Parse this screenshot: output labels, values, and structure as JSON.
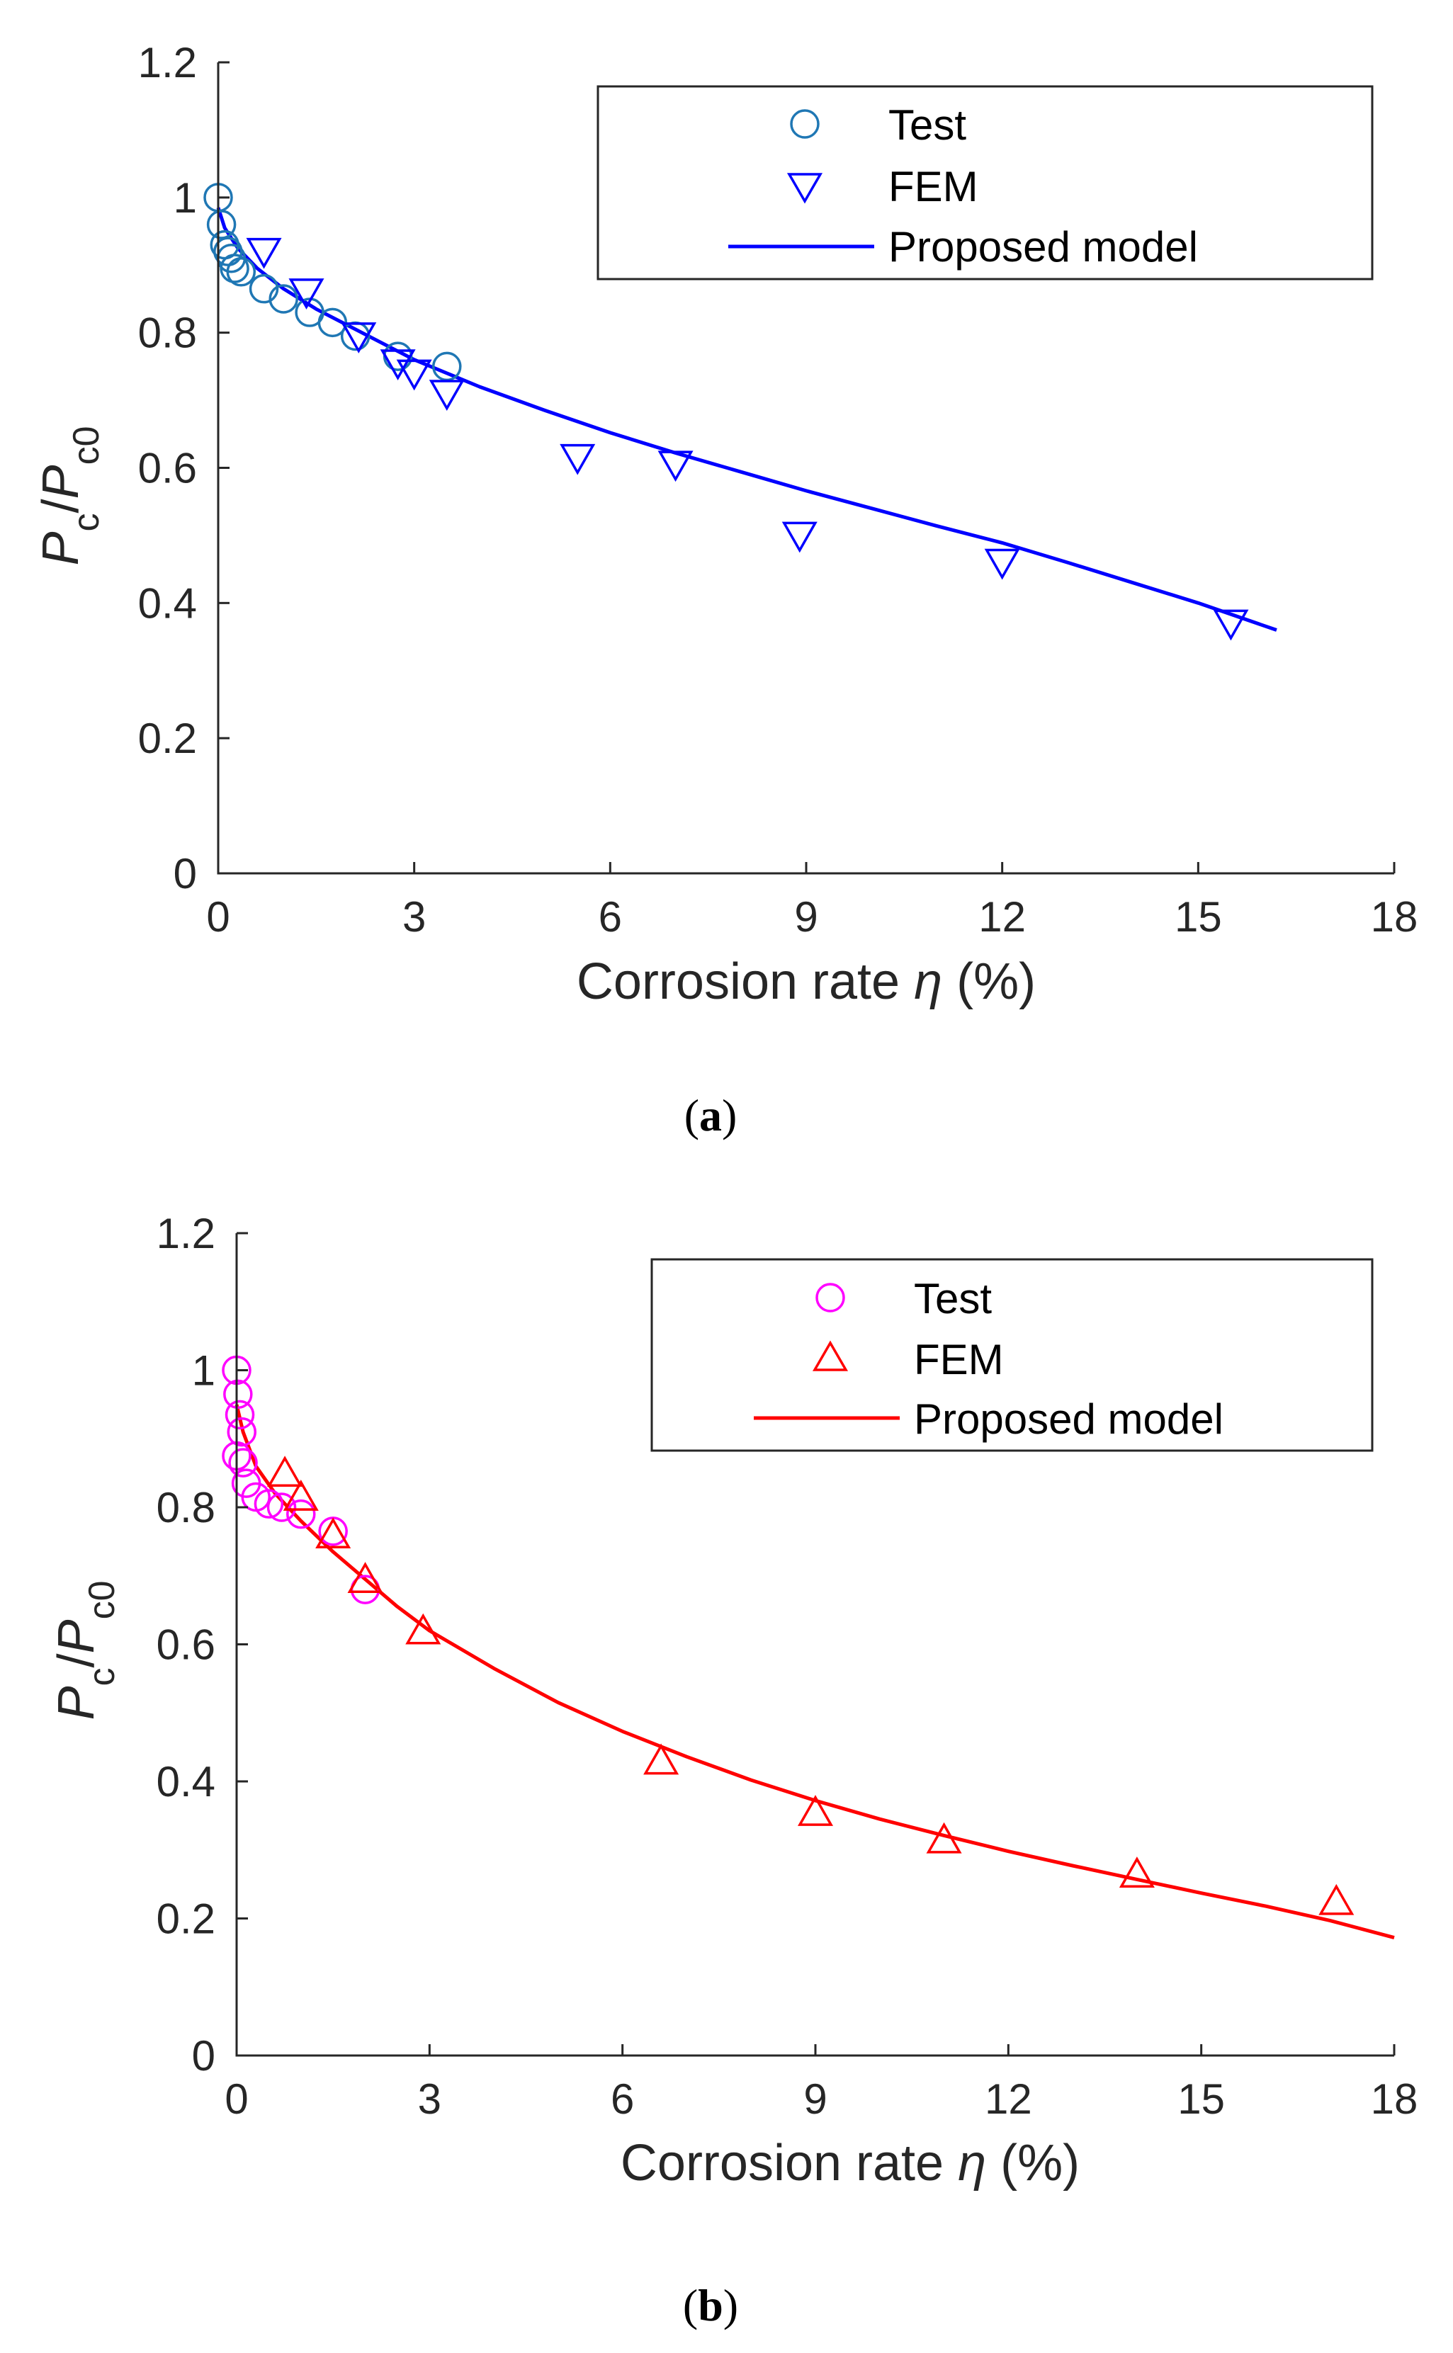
{
  "chart_data": [
    {
      "type": "scatter",
      "caption_letter": "a",
      "xlabel_text": "Corrosion rate ",
      "xlabel_symbol": "η",
      "xlabel_unit": " (%)",
      "ylabel": {
        "p1": "P",
        "s1": "c",
        "slash": "/",
        "p2": "P",
        "s2": "c0"
      },
      "xlim": [
        0,
        18
      ],
      "ylim": [
        0,
        1.2
      ],
      "xticks": [
        0,
        3,
        6,
        9,
        12,
        15,
        18
      ],
      "yticks": [
        0,
        0.2,
        0.4,
        0.6,
        0.8,
        1,
        1.2
      ],
      "xtick_labels": [
        "0",
        "3",
        "6",
        "9",
        "12",
        "15",
        "18"
      ],
      "ytick_labels": [
        "0",
        "0.2",
        "0.4",
        "0.6",
        "0.8",
        "1",
        "1.2"
      ],
      "legend": {
        "position": "top-right",
        "test": "Test",
        "fem": "FEM",
        "model": "Proposed model"
      },
      "colors": {
        "test": "#1f77b4",
        "fem": "#0000ff",
        "model": "#0000ff"
      },
      "fem_marker": "triangle-down",
      "series": [
        {
          "name": "Test",
          "marker": "circle",
          "x": [
            0.0,
            0.05,
            0.1,
            0.15,
            0.2,
            0.25,
            0.35,
            0.7,
            1.0,
            1.4,
            1.75,
            2.1,
            2.75,
            3.5
          ],
          "y": [
            1.0,
            0.96,
            0.93,
            0.92,
            0.91,
            0.895,
            0.89,
            0.865,
            0.85,
            0.83,
            0.815,
            0.795,
            0.765,
            0.75
          ]
        },
        {
          "name": "FEM",
          "marker": "triangle-down",
          "x": [
            0.7,
            1.35,
            2.15,
            2.75,
            3.0,
            3.5,
            5.5,
            7.0,
            8.9,
            12.0,
            15.5
          ],
          "y": [
            0.92,
            0.86,
            0.795,
            0.755,
            0.74,
            0.71,
            0.615,
            0.605,
            0.5,
            0.46,
            0.37
          ]
        },
        {
          "name": "Proposed model",
          "marker": "line",
          "x": [
            0.0,
            0.1,
            0.3,
            0.6,
            1.0,
            1.5,
            2.0,
            3.0,
            4.0,
            5.0,
            6.0,
            7.0,
            8.0,
            9.0,
            10.0,
            11.0,
            12.0,
            13.0,
            14.0,
            15.0,
            16.2
          ],
          "y": [
            0.985,
            0.955,
            0.925,
            0.895,
            0.865,
            0.835,
            0.81,
            0.76,
            0.72,
            0.685,
            0.652,
            0.622,
            0.594,
            0.566,
            0.54,
            0.514,
            0.489,
            0.46,
            0.43,
            0.4,
            0.36
          ]
        }
      ]
    },
    {
      "type": "scatter",
      "caption_letter": "b",
      "xlabel_text": "Corrosion rate ",
      "xlabel_symbol": "η",
      "xlabel_unit": " (%)",
      "ylabel": {
        "p1": "P",
        "s1": "c",
        "slash": "/",
        "p2": "P",
        "s2": "c0"
      },
      "xlim": [
        0,
        18
      ],
      "ylim": [
        0,
        1.2
      ],
      "xticks": [
        0,
        3,
        6,
        9,
        12,
        15,
        18
      ],
      "yticks": [
        0,
        0.2,
        0.4,
        0.6,
        0.8,
        1,
        1.2
      ],
      "xtick_labels": [
        "0",
        "3",
        "6",
        "9",
        "12",
        "15",
        "18"
      ],
      "ytick_labels": [
        "0",
        "0.2",
        "0.4",
        "0.6",
        "0.8",
        "1",
        "1.2"
      ],
      "legend": {
        "position": "top-right",
        "test": "Test",
        "fem": "FEM",
        "model": "Proposed model"
      },
      "colors": {
        "test": "#ff00ff",
        "fem": "#ff0000",
        "model": "#ff0000"
      },
      "fem_marker": "triangle-up",
      "series": [
        {
          "name": "Test",
          "marker": "circle",
          "x": [
            0.0,
            0.02,
            0.05,
            0.08,
            0.0,
            0.1,
            0.15,
            0.3,
            0.5,
            0.7,
            1.0,
            1.5,
            2.0
          ],
          "y": [
            1.0,
            0.965,
            0.935,
            0.91,
            0.875,
            0.865,
            0.835,
            0.815,
            0.805,
            0.8,
            0.79,
            0.765,
            0.68
          ]
        },
        {
          "name": "FEM",
          "marker": "triangle-up",
          "x": [
            0.75,
            1.0,
            1.5,
            2.0,
            2.9,
            6.6,
            9.0,
            11.0,
            14.0,
            17.1
          ],
          "y": [
            0.85,
            0.815,
            0.76,
            0.695,
            0.62,
            0.43,
            0.355,
            0.315,
            0.265,
            0.225
          ]
        },
        {
          "name": "Proposed model",
          "marker": "line",
          "x": [
            0.0,
            0.1,
            0.3,
            0.6,
            1.0,
            1.5,
            2.0,
            2.5,
            3.0,
            4.0,
            5.0,
            6.0,
            7.0,
            8.0,
            9.0,
            10.0,
            11.0,
            12.0,
            13.0,
            14.0,
            15.0,
            16.0,
            17.0,
            18.0
          ],
          "y": [
            0.95,
            0.91,
            0.86,
            0.82,
            0.78,
            0.735,
            0.695,
            0.655,
            0.62,
            0.565,
            0.515,
            0.473,
            0.436,
            0.402,
            0.372,
            0.345,
            0.321,
            0.298,
            0.277,
            0.257,
            0.237,
            0.218,
            0.197,
            0.172
          ]
        }
      ]
    }
  ]
}
